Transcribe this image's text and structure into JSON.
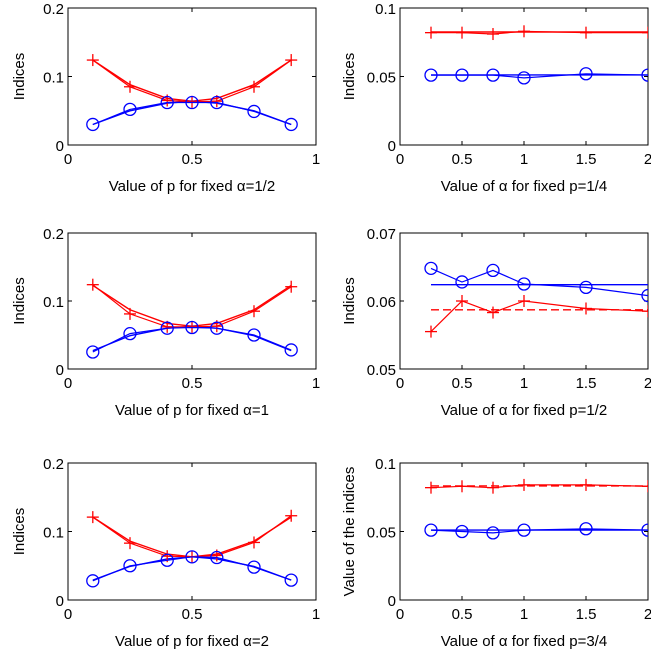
{
  "chart_data": [
    {
      "type": "line",
      "xlabel": "Value of p for fixed α=1/2",
      "ylabel": "Indices",
      "xlim": [
        0,
        1
      ],
      "ylim": [
        0,
        0.2
      ],
      "xticks": [
        "0",
        "0.5",
        "1"
      ],
      "xtick_values": [
        0,
        0.5,
        1
      ],
      "yticks": [
        "0",
        "0.1",
        "0.2"
      ],
      "ytick_values": [
        0,
        0.1,
        0.2
      ],
      "series": [
        {
          "color": "#ff0000",
          "marker": "plus",
          "x": [
            0.1,
            0.25,
            0.4,
            0.5,
            0.6,
            0.75,
            0.9
          ],
          "y": [
            0.124,
            0.085,
            0.065,
            0.063,
            0.064,
            0.085,
            0.124
          ]
        },
        {
          "color": "#0000ff",
          "marker": "circle",
          "x": [
            0.1,
            0.25,
            0.4,
            0.5,
            0.6,
            0.75,
            0.9
          ],
          "y": [
            0.03,
            0.052,
            0.062,
            0.062,
            0.062,
            0.049,
            0.03
          ]
        }
      ],
      "fits": [
        {
          "color": "#ff0000",
          "dash": "solid",
          "points": [
            [
              0.1,
              0.124
            ],
            [
              0.25,
              0.088
            ],
            [
              0.4,
              0.068
            ],
            [
              0.5,
              0.064
            ],
            [
              0.6,
              0.068
            ],
            [
              0.75,
              0.088
            ],
            [
              0.9,
              0.124
            ]
          ]
        },
        {
          "color": "#0000ff",
          "dash": "solid",
          "points": [
            [
              0.1,
              0.03
            ],
            [
              0.25,
              0.05
            ],
            [
              0.4,
              0.061
            ],
            [
              0.5,
              0.064
            ],
            [
              0.6,
              0.061
            ],
            [
              0.75,
              0.05
            ],
            [
              0.9,
              0.03
            ]
          ]
        }
      ]
    },
    {
      "type": "line",
      "xlabel": "Value of α for fixed p=1/4",
      "ylabel": "Indices",
      "xlim": [
        0,
        2
      ],
      "ylim": [
        0,
        0.1
      ],
      "xticks": [
        "0",
        "0.5",
        "1",
        "1.5",
        "2"
      ],
      "xtick_values": [
        0,
        0.5,
        1,
        1.5,
        2
      ],
      "yticks": [
        "0",
        "0.05",
        "0.1"
      ],
      "ytick_values": [
        0,
        0.05,
        0.1
      ],
      "series": [
        {
          "color": "#ff0000",
          "marker": "plus",
          "x": [
            0.25,
            0.5,
            0.75,
            1,
            1.5,
            2
          ],
          "y": [
            0.082,
            0.082,
            0.081,
            0.083,
            0.082,
            0.082
          ]
        },
        {
          "color": "#0000ff",
          "marker": "circle",
          "x": [
            0.25,
            0.5,
            0.75,
            1,
            1.5,
            2
          ],
          "y": [
            0.051,
            0.051,
            0.051,
            0.049,
            0.052,
            0.051
          ]
        }
      ],
      "fits": [
        {
          "color": "#ff0000",
          "dash": "solid",
          "points": [
            [
              0.25,
              0.0825
            ],
            [
              2,
              0.0825
            ]
          ]
        },
        {
          "color": "#0000ff",
          "dash": "solid",
          "points": [
            [
              0.25,
              0.0512
            ],
            [
              2,
              0.0512
            ]
          ]
        }
      ]
    },
    {
      "type": "line",
      "xlabel": "Value of p for fixed α=1",
      "ylabel": "Indices",
      "xlim": [
        0,
        1
      ],
      "ylim": [
        0,
        0.2
      ],
      "xticks": [
        "0",
        "0.5",
        "1"
      ],
      "xtick_values": [
        0,
        0.5,
        1
      ],
      "yticks": [
        "0",
        "0.1",
        "0.2"
      ],
      "ytick_values": [
        0,
        0.1,
        0.2
      ],
      "series": [
        {
          "color": "#ff0000",
          "marker": "plus",
          "x": [
            0.1,
            0.25,
            0.4,
            0.5,
            0.6,
            0.75,
            0.9
          ],
          "y": [
            0.124,
            0.081,
            0.062,
            0.062,
            0.063,
            0.085,
            0.121
          ]
        },
        {
          "color": "#0000ff",
          "marker": "circle",
          "x": [
            0.1,
            0.25,
            0.4,
            0.5,
            0.6,
            0.75,
            0.9
          ],
          "y": [
            0.025,
            0.052,
            0.06,
            0.061,
            0.06,
            0.05,
            0.028
          ]
        }
      ],
      "fits": [
        {
          "color": "#ff0000",
          "dash": "solid",
          "points": [
            [
              0.1,
              0.123
            ],
            [
              0.25,
              0.087
            ],
            [
              0.4,
              0.067
            ],
            [
              0.5,
              0.063
            ],
            [
              0.6,
              0.067
            ],
            [
              0.75,
              0.087
            ],
            [
              0.9,
              0.123
            ]
          ]
        },
        {
          "color": "#0000ff",
          "dash": "solid",
          "points": [
            [
              0.1,
              0.027
            ],
            [
              0.25,
              0.049
            ],
            [
              0.4,
              0.06
            ],
            [
              0.5,
              0.063
            ],
            [
              0.6,
              0.06
            ],
            [
              0.75,
              0.049
            ],
            [
              0.9,
              0.027
            ]
          ]
        }
      ]
    },
    {
      "type": "line",
      "xlabel": "Value of α for fixed p=1/2",
      "ylabel": "Indices",
      "xlim": [
        0,
        2
      ],
      "ylim": [
        0.05,
        0.07
      ],
      "xticks": [
        "0",
        "0.5",
        "1",
        "1.5",
        "2"
      ],
      "xtick_values": [
        0,
        0.5,
        1,
        1.5,
        2
      ],
      "yticks": [
        "0.05",
        "0.06",
        "0.07"
      ],
      "ytick_values": [
        0.05,
        0.06,
        0.07
      ],
      "series": [
        {
          "color": "#ff0000",
          "marker": "plus",
          "x": [
            0.25,
            0.5,
            0.75,
            1,
            1.5,
            2
          ],
          "y": [
            0.0555,
            0.06,
            0.0583,
            0.06,
            0.0589,
            0.0585
          ]
        },
        {
          "color": "#0000ff",
          "marker": "circle",
          "x": [
            0.25,
            0.5,
            0.75,
            1,
            1.5,
            2
          ],
          "y": [
            0.0648,
            0.0628,
            0.0645,
            0.0625,
            0.062,
            0.0608
          ]
        }
      ],
      "fits": [
        {
          "color": "#ff0000",
          "dash": "dashed",
          "points": [
            [
              0.25,
              0.0587
            ],
            [
              2,
              0.0587
            ]
          ]
        },
        {
          "color": "#0000ff",
          "dash": "solid",
          "points": [
            [
              0.25,
              0.0624
            ],
            [
              2,
              0.0624
            ]
          ]
        }
      ]
    },
    {
      "type": "line",
      "xlabel": "Value of p for fixed α=2",
      "ylabel": "Indices",
      "xlim": [
        0,
        1
      ],
      "ylim": [
        0,
        0.2
      ],
      "xticks": [
        "0",
        "0.5",
        "1"
      ],
      "xtick_values": [
        0,
        0.5,
        1
      ],
      "yticks": [
        "0",
        "0.1",
        "0.2"
      ],
      "ytick_values": [
        0,
        0.1,
        0.2
      ],
      "series": [
        {
          "color": "#ff0000",
          "marker": "plus",
          "x": [
            0.1,
            0.25,
            0.4,
            0.5,
            0.6,
            0.75,
            0.9
          ],
          "y": [
            0.121,
            0.083,
            0.064,
            0.063,
            0.065,
            0.084,
            0.123
          ]
        },
        {
          "color": "#0000ff",
          "marker": "circle",
          "x": [
            0.1,
            0.25,
            0.4,
            0.5,
            0.6,
            0.75,
            0.9
          ],
          "y": [
            0.028,
            0.05,
            0.058,
            0.063,
            0.062,
            0.048,
            0.029
          ]
        }
      ],
      "fits": [
        {
          "color": "#ff0000",
          "dash": "solid",
          "points": [
            [
              0.1,
              0.121
            ],
            [
              0.25,
              0.086
            ],
            [
              0.4,
              0.067
            ],
            [
              0.5,
              0.063
            ],
            [
              0.6,
              0.067
            ],
            [
              0.75,
              0.086
            ],
            [
              0.9,
              0.121
            ]
          ]
        },
        {
          "color": "#0000ff",
          "dash": "solid",
          "points": [
            [
              0.1,
              0.029
            ],
            [
              0.25,
              0.049
            ],
            [
              0.4,
              0.06
            ],
            [
              0.5,
              0.063
            ],
            [
              0.6,
              0.06
            ],
            [
              0.75,
              0.049
            ],
            [
              0.9,
              0.029
            ]
          ]
        }
      ]
    },
    {
      "type": "line",
      "xlabel": "Value of α for fixed p=3/4",
      "ylabel": "Value of the indices",
      "xlim": [
        0,
        2
      ],
      "ylim": [
        0,
        0.1
      ],
      "xticks": [
        "0",
        "0.5",
        "1",
        "1.5",
        "2"
      ],
      "xtick_values": [
        0,
        0.5,
        1,
        1.5,
        2
      ],
      "yticks": [
        "0",
        "0.05",
        "0.1"
      ],
      "ytick_values": [
        0,
        0.05,
        0.1
      ],
      "series": [
        {
          "color": "#ff0000",
          "marker": "plus",
          "x": [
            0.25,
            0.5,
            0.75,
            1,
            1.5,
            2
          ],
          "y": [
            0.082,
            0.083,
            0.082,
            0.084,
            0.084,
            0.083
          ]
        },
        {
          "color": "#0000ff",
          "marker": "circle",
          "x": [
            0.25,
            0.5,
            0.75,
            1,
            1.5,
            2
          ],
          "y": [
            0.051,
            0.05,
            0.049,
            0.051,
            0.052,
            0.051
          ]
        }
      ],
      "fits": [
        {
          "color": "#ff0000",
          "dash": "dashed",
          "points": [
            [
              0.25,
              0.0833
            ],
            [
              2,
              0.0833
            ]
          ]
        },
        {
          "color": "#0000ff",
          "dash": "solid",
          "points": [
            [
              0.25,
              0.051
            ],
            [
              2,
              0.051
            ]
          ]
        }
      ]
    }
  ]
}
